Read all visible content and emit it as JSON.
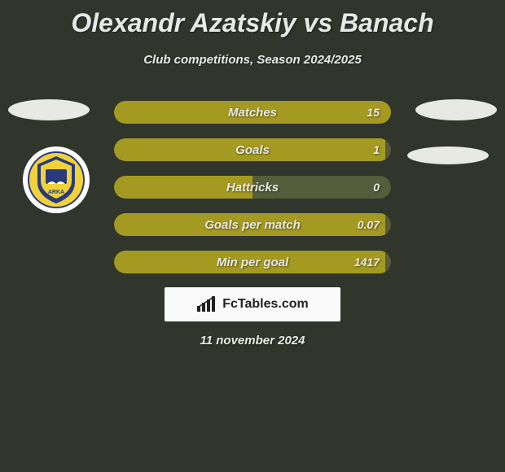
{
  "title": "Olexandr Azatskiy vs Banach",
  "subtitle": "Club competitions, Season 2024/2025",
  "date": "11 november 2024",
  "branding": "FcTables.com",
  "colors": {
    "bar_fill": "#a49a22",
    "bar_bg": "#565d3c",
    "avatar": "#e9e9e4",
    "background": "#30362b",
    "text": "#e8e8e8"
  },
  "stats": [
    {
      "label": "Matches",
      "value": "15",
      "fill_pct": 100
    },
    {
      "label": "Goals",
      "value": "1",
      "fill_pct": 98
    },
    {
      "label": "Hattricks",
      "value": "0",
      "fill_pct": 50
    },
    {
      "label": "Goals per match",
      "value": "0.07",
      "fill_pct": 98
    },
    {
      "label": "Min per goal",
      "value": "1417",
      "fill_pct": 98
    }
  ]
}
